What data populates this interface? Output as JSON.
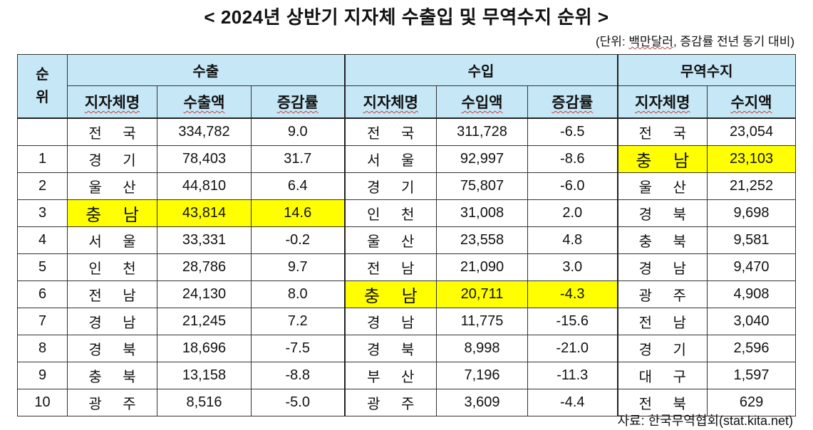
{
  "title": "< 2024년 상반기 지자체 수출입 및 무역수지 순위 >",
  "unit_prefix": "(단위: ",
  "unit_main": "백만달러",
  "unit_suffix": ", 증감률 전년 동기 대비)",
  "source": "자료: 한국무역협회(stat.kita.net)",
  "headers": {
    "rank": "순\n위",
    "export_group": "수출",
    "import_group": "수입",
    "balance_group": "무역수지",
    "region_name": "지자체명",
    "export_amount": "수출액",
    "import_amount": "수입액",
    "change_rate": "증감률",
    "balance_amount": "수지액"
  },
  "highlight_color": "#ffff00",
  "header_color": "#c6e7f6",
  "rows": [
    {
      "rank": "",
      "ex_name": "전 국",
      "ex_amt": "334,782",
      "ex_rate": "9.0",
      "im_name": "전 국",
      "im_amt": "311,728",
      "im_rate": "-6.5",
      "bal_name": "전 국",
      "bal_amt": "23,054"
    },
    {
      "rank": "1",
      "ex_name": "경 기",
      "ex_amt": "78,403",
      "ex_rate": "31.7",
      "im_name": "서 울",
      "im_amt": "92,997",
      "im_rate": "-8.6",
      "bal_name": "충 남",
      "bal_amt": "23,103"
    },
    {
      "rank": "2",
      "ex_name": "울 산",
      "ex_amt": "44,810",
      "ex_rate": "6.4",
      "im_name": "경 기",
      "im_amt": "75,807",
      "im_rate": "-6.0",
      "bal_name": "울 산",
      "bal_amt": "21,252"
    },
    {
      "rank": "3",
      "ex_name": "충 남",
      "ex_amt": "43,814",
      "ex_rate": "14.6",
      "im_name": "인 천",
      "im_amt": "31,008",
      "im_rate": "2.0",
      "bal_name": "경 북",
      "bal_amt": "9,698"
    },
    {
      "rank": "4",
      "ex_name": "서 울",
      "ex_amt": "33,331",
      "ex_rate": "-0.2",
      "im_name": "울 산",
      "im_amt": "23,558",
      "im_rate": "4.8",
      "bal_name": "충 북",
      "bal_amt": "9,581"
    },
    {
      "rank": "5",
      "ex_name": "인 천",
      "ex_amt": "28,786",
      "ex_rate": "9.7",
      "im_name": "전 남",
      "im_amt": "21,090",
      "im_rate": "3.0",
      "bal_name": "경 남",
      "bal_amt": "9,470"
    },
    {
      "rank": "6",
      "ex_name": "전 남",
      "ex_amt": "24,130",
      "ex_rate": "8.0",
      "im_name": "충 남",
      "im_amt": "20,711",
      "im_rate": "-4.3",
      "bal_name": "광 주",
      "bal_amt": "4,908"
    },
    {
      "rank": "7",
      "ex_name": "경 남",
      "ex_amt": "21,245",
      "ex_rate": "7.2",
      "im_name": "경 남",
      "im_amt": "11,775",
      "im_rate": "-15.6",
      "bal_name": "전 남",
      "bal_amt": "3,040"
    },
    {
      "rank": "8",
      "ex_name": "경 북",
      "ex_amt": "18,696",
      "ex_rate": "-7.5",
      "im_name": "경 북",
      "im_amt": "8,998",
      "im_rate": "-21.0",
      "bal_name": "경 기",
      "bal_amt": "2,596"
    },
    {
      "rank": "9",
      "ex_name": "충 북",
      "ex_amt": "13,158",
      "ex_rate": "-8.8",
      "im_name": "부 산",
      "im_amt": "7,196",
      "im_rate": "-11.3",
      "bal_name": "대 구",
      "bal_amt": "1,597"
    },
    {
      "rank": "10",
      "ex_name": "광 주",
      "ex_amt": "8,516",
      "ex_rate": "-5.0",
      "im_name": "광 주",
      "im_amt": "3,609",
      "im_rate": "-4.4",
      "bal_name": "전 북",
      "bal_amt": "629"
    }
  ]
}
